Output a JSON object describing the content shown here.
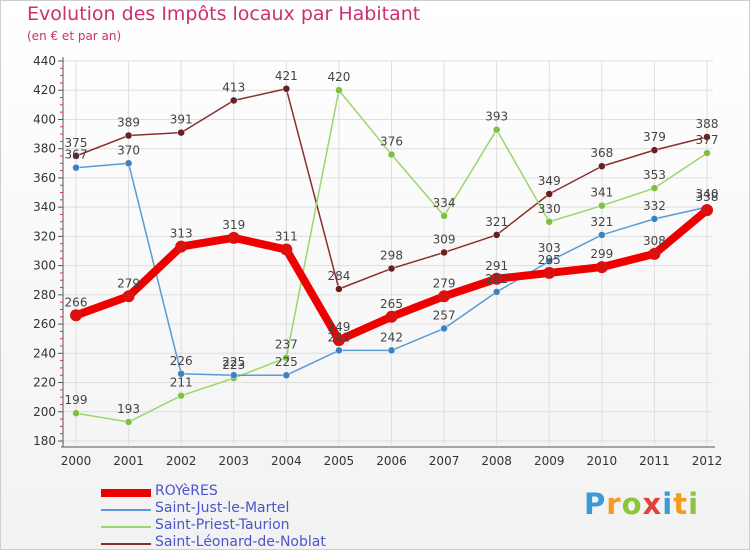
{
  "title": "Evolution des Impôts locaux par Habitant",
  "subtitle": "(en € et par an)",
  "logo": {
    "text": "Proxiti",
    "parts": [
      {
        "t": "P",
        "cls": "c1"
      },
      {
        "t": "r",
        "cls": "c2"
      },
      {
        "t": "o",
        "cls": "c3"
      },
      {
        "t": "x",
        "cls": "c4"
      },
      {
        "t": "i",
        "cls": "c1"
      },
      {
        "t": "t",
        "cls": "c2"
      },
      {
        "t": "i",
        "cls": "c3"
      }
    ]
  },
  "colors": {
    "title": "#cc2f72",
    "axis_text": "#333333",
    "grid": "#dddddd",
    "legend_text": "#4a56c9"
  },
  "chart_data": {
    "type": "line",
    "title": "Evolution des Impôts locaux par Habitant",
    "subtitle": "(en € et par an)",
    "xlabel": "",
    "ylabel": "",
    "x": [
      2000,
      2001,
      2002,
      2003,
      2004,
      2005,
      2006,
      2007,
      2008,
      2009,
      2010,
      2011,
      2012
    ],
    "ylim": [
      180,
      440
    ],
    "yticks": [
      180,
      200,
      220,
      240,
      260,
      280,
      300,
      320,
      340,
      360,
      380,
      400,
      420,
      440
    ],
    "grid": true,
    "legend": "bottom-left",
    "series": [
      {
        "name": "ROYèRES",
        "color": "#ee0000",
        "marker": "#dd1010",
        "width": 8,
        "labels": true,
        "values": [
          266,
          279,
          313,
          319,
          311,
          249,
          265,
          279,
          291,
          295,
          299,
          308,
          338
        ]
      },
      {
        "name": "Saint-Just-le-Martel",
        "color": "#5b9bd5",
        "marker": "#3b82c4",
        "width": 1.5,
        "labels": true,
        "values": [
          367,
          370,
          226,
          225,
          225,
          242,
          242,
          257,
          282,
          303,
          321,
          332,
          340
        ]
      },
      {
        "name": "Saint-Priest-Taurion",
        "color": "#9bd66a",
        "marker": "#7cc242",
        "width": 1.5,
        "labels": true,
        "values": [
          199,
          193,
          211,
          223,
          237,
          420,
          376,
          334,
          393,
          330,
          341,
          353,
          377
        ]
      },
      {
        "name": "Saint-Léonard-de-Noblat",
        "color": "#8b2e2e",
        "marker": "#6b1e1e",
        "width": 1.5,
        "labels": true,
        "values": [
          375,
          389,
          391,
          413,
          421,
          284,
          298,
          309,
          321,
          349,
          368,
          379,
          388
        ]
      }
    ]
  }
}
